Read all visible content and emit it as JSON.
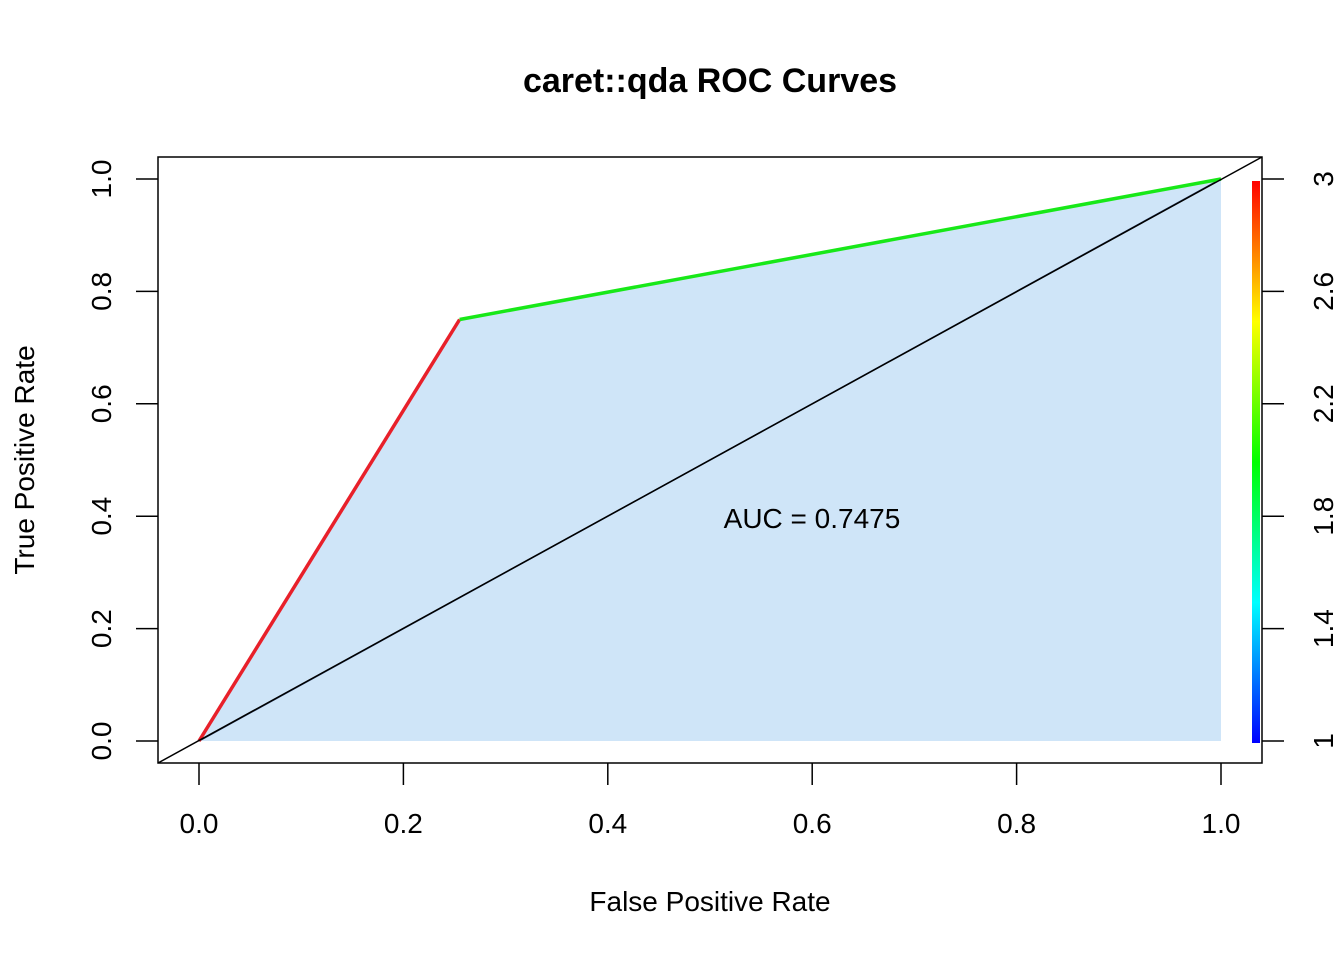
{
  "chart_data": {
    "type": "line",
    "title": "caret::qda ROC Curves",
    "xlabel": "False Positive Rate",
    "ylabel": "True Positive Rate",
    "xlim": [
      0.0,
      1.0
    ],
    "ylim": [
      0.0,
      1.0
    ],
    "x_ticks": [
      "0.0",
      "0.2",
      "0.4",
      "0.6",
      "0.8",
      "1.0"
    ],
    "y_ticks": [
      "0.0",
      "0.2",
      "0.4",
      "0.6",
      "0.8",
      "1.0"
    ],
    "grid": false,
    "roc_curve": {
      "points": [
        {
          "x": 0.0,
          "y": 0.0,
          "cutoff": 3.0
        },
        {
          "x": 0.255,
          "y": 0.75,
          "cutoff": 2.0
        },
        {
          "x": 1.0,
          "y": 1.0,
          "cutoff": 1.0
        }
      ],
      "segment_colors": [
        "#e8202a",
        "#18e818"
      ],
      "fill_color": "#cfe5f8"
    },
    "diagonal": {
      "x": [
        0.0,
        1.0
      ],
      "y": [
        0.0,
        1.0
      ],
      "color": "#1a2a4a"
    },
    "annotation": {
      "text": "AUC = 0.7475",
      "x": 0.6,
      "y": 0.4
    },
    "colorbar": {
      "range": [
        1.0,
        3.0
      ],
      "ticks": [
        "1",
        "1.4",
        "1.8",
        "2.2",
        "2.6",
        "3"
      ],
      "colors": [
        "#0000ff",
        "#00ffff",
        "#00ff00",
        "#ffff00",
        "#ff0000"
      ]
    }
  }
}
